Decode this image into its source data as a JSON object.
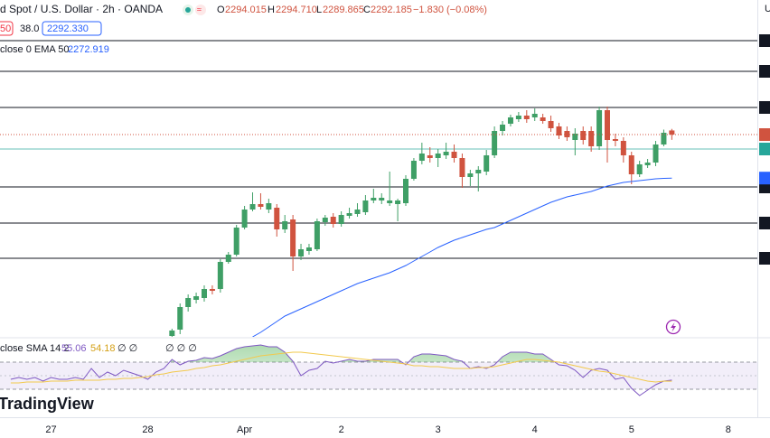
{
  "header": {
    "symbol": "d Spot / U.S. Dollar · 2h · OANDA",
    "ohlc": [
      {
        "k": "O",
        "v": "2294.015"
      },
      {
        "k": "H",
        "v": "2294.710"
      },
      {
        "k": "L",
        "v": "2289.865"
      },
      {
        "k": "C",
        "v": "2292.185"
      }
    ],
    "change": "−1.830 (−0.08%)",
    "spread": [
      "50",
      "38.0",
      "2292.330"
    ],
    "ema_legend": [
      "close 0 EMA 50",
      "2272.919"
    ],
    "rsi_legend": [
      "close SMA 14 2",
      "55.06",
      "54.18",
      "∅ ∅"
    ],
    "rsi_extra": "∅ ∅ ∅",
    "logo": "TradingView",
    "axis_corner": "U"
  },
  "chart_data": [
    {
      "type": "candlestick",
      "up_color": "#3f9f66",
      "down_color": "#d0533f",
      "ylim": [
        2202.6,
        2351.8
      ],
      "levels": [
        2333.8,
        2320.2,
        2304.2,
        2269.0,
        2253.0,
        2237.4
      ],
      "level_color": "#131722",
      "reference_line": {
        "value": 2285.8,
        "color": "#26a69a"
      },
      "ohlc": [
        null,
        null,
        null,
        null,
        null,
        null,
        null,
        null,
        null,
        null,
        null,
        null,
        null,
        null,
        null,
        null,
        null,
        null,
        null,
        null,
        null,
        [
          2203.0,
          2206.2,
          2202.2,
          2205.4
        ],
        [
          2205.8,
          2217.4,
          2203.8,
          2215.8
        ],
        [
          2215.8,
          2221.4,
          2213.8,
          2219.8
        ],
        [
          2219.0,
          2222.2,
          2217.4,
          2220.6
        ],
        [
          2219.8,
          2225.4,
          2218.2,
          2223.8
        ],
        [
          2223.8,
          2225.4,
          2221.4,
          2223.0
        ],
        [
          2223.8,
          2237.0,
          2222.2,
          2235.8
        ],
        [
          2235.8,
          2240.2,
          2235.0,
          2239.0
        ],
        [
          2239.0,
          2252.2,
          2238.2,
          2251.0
        ],
        [
          2251.0,
          2260.6,
          2250.2,
          2259.0
        ],
        [
          2259.0,
          2266.6,
          2258.2,
          2261.4
        ],
        [
          2261.4,
          2266.2,
          2259.0,
          2260.2
        ],
        [
          2259.0,
          2263.8,
          2257.4,
          2261.8
        ],
        [
          2259.8,
          2261.4,
          2247.0,
          2250.2
        ],
        [
          2250.2,
          2256.6,
          2248.6,
          2253.8
        ],
        [
          2254.6,
          2256.6,
          2231.8,
          2238.2
        ],
        [
          2238.2,
          2243.8,
          2236.6,
          2241.4
        ],
        [
          2240.6,
          2243.8,
          2239.0,
          2242.2
        ],
        [
          2241.4,
          2255.0,
          2240.6,
          2253.8
        ],
        [
          2253.4,
          2256.6,
          2251.8,
          2255.4
        ],
        [
          2255.8,
          2257.4,
          2251.0,
          2252.6
        ],
        [
          2252.6,
          2258.2,
          2251.4,
          2256.6
        ],
        [
          2256.2,
          2259.8,
          2255.0,
          2257.4
        ],
        [
          2257.0,
          2261.8,
          2255.8,
          2259.0
        ],
        [
          2257.8,
          2265.4,
          2256.6,
          2263.0
        ],
        [
          2263.0,
          2268.2,
          2261.8,
          2264.2
        ],
        [
          2263.0,
          2266.2,
          2261.4,
          2264.2
        ],
        [
          2261.8,
          2275.8,
          2260.6,
          2263.0
        ],
        [
          2261.4,
          2263.8,
          2253.8,
          2263.0
        ],
        [
          2261.8,
          2274.2,
          2260.6,
          2272.6
        ],
        [
          2272.6,
          2281.8,
          2271.8,
          2280.6
        ],
        [
          2280.6,
          2288.6,
          2279.0,
          2283.8
        ],
        [
          2283.0,
          2286.6,
          2279.8,
          2281.8
        ],
        [
          2281.8,
          2285.8,
          2277.8,
          2283.8
        ],
        [
          2283.0,
          2288.6,
          2281.4,
          2284.6
        ],
        [
          2284.6,
          2287.8,
          2279.8,
          2281.8
        ],
        [
          2281.8,
          2283.8,
          2268.6,
          2273.4
        ],
        [
          2273.4,
          2276.6,
          2269.4,
          2275.0
        ],
        [
          2275.0,
          2278.2,
          2267.0,
          2276.6
        ],
        [
          2275.8,
          2285.4,
          2274.2,
          2283.0
        ],
        [
          2283.0,
          2295.8,
          2281.8,
          2293.8
        ],
        [
          2293.8,
          2298.2,
          2291.8,
          2296.6
        ],
        [
          2297.0,
          2301.0,
          2295.8,
          2299.8
        ],
        [
          2299.0,
          2302.2,
          2297.8,
          2300.6
        ],
        [
          2300.6,
          2303.0,
          2297.4,
          2299.0
        ],
        [
          2299.8,
          2303.8,
          2298.2,
          2301.4
        ],
        [
          2299.8,
          2301.4,
          2297.0,
          2298.2
        ],
        [
          2298.2,
          2300.6,
          2293.4,
          2295.0
        ],
        [
          2295.8,
          2297.4,
          2290.2,
          2291.8
        ],
        [
          2293.8,
          2295.8,
          2289.4,
          2291.0
        ],
        [
          2289.8,
          2295.0,
          2283.0,
          2292.6
        ],
        [
          2293.8,
          2295.8,
          2287.8,
          2289.8
        ],
        [
          2293.8,
          2295.8,
          2284.6,
          2287.0
        ],
        [
          2287.0,
          2304.6,
          2285.4,
          2303.0
        ],
        [
          2303.0,
          2304.6,
          2279.8,
          2289.8
        ],
        [
          2290.2,
          2292.6,
          2287.0,
          2289.4
        ],
        [
          2289.4,
          2291.0,
          2279.8,
          2283.0
        ],
        [
          2283.0,
          2284.6,
          2270.2,
          2274.6
        ],
        [
          2274.6,
          2280.6,
          2273.4,
          2279.0
        ],
        [
          2278.6,
          2281.4,
          2277.4,
          2279.8
        ],
        [
          2279.8,
          2289.4,
          2278.2,
          2287.8
        ],
        [
          2287.8,
          2294.4,
          2287.0,
          2293.0
        ],
        [
          2294.015,
          2294.71,
          2289.865,
          2292.185
        ],
        null,
        null,
        null,
        null,
        null,
        null,
        null
      ],
      "overlay": {
        "color": "#2962ff",
        "values": [
          null,
          null,
          null,
          null,
          null,
          null,
          null,
          null,
          null,
          null,
          null,
          null,
          null,
          null,
          null,
          null,
          null,
          null,
          null,
          null,
          null,
          null,
          null,
          null,
          null,
          null,
          null,
          null,
          null,
          null,
          null,
          2202.6,
          2204.6,
          2207.0,
          2209.4,
          2211.8,
          2213.4,
          2215.0,
          2216.6,
          2218.2,
          2219.8,
          2221.4,
          2223.0,
          2224.6,
          2226.2,
          2227.4,
          2228.6,
          2229.8,
          2231.0,
          2232.6,
          2234.2,
          2236.2,
          2238.2,
          2240.2,
          2242.2,
          2243.8,
          2245.4,
          2246.6,
          2247.8,
          2249.0,
          2250.2,
          2251.0,
          2252.6,
          2254.2,
          2255.8,
          2257.4,
          2259.0,
          2260.6,
          2262.2,
          2263.4,
          2264.6,
          2265.4,
          2266.2,
          2267.0,
          2268.2,
          2269.4,
          2270.2,
          2271.0,
          2271.4,
          2271.8,
          2272.2,
          2272.6,
          2272.8,
          2272.919,
          null,
          null,
          null,
          null,
          null,
          null,
          null
        ]
      }
    },
    {
      "type": "line",
      "ylim": [
        24.25,
        89.5
      ],
      "fill_color": "#4caf50",
      "categories": [
        null,
        null,
        null,
        null,
        null,
        null,
        "27",
        null,
        null,
        null,
        null,
        null,
        null,
        null,
        null,
        null,
        null,
        null,
        "28",
        null,
        null,
        null,
        null,
        null,
        null,
        null,
        null,
        null,
        null,
        null,
        "Apr",
        null,
        null,
        null,
        null,
        null,
        null,
        null,
        null,
        null,
        null,
        null,
        "2",
        null,
        null,
        null,
        null,
        null,
        null,
        null,
        null,
        null,
        null,
        null,
        "3",
        null,
        null,
        null,
        null,
        null,
        null,
        null,
        null,
        null,
        null,
        null,
        "4",
        null,
        null,
        null,
        null,
        null,
        null,
        null,
        null,
        null,
        null,
        null,
        "5",
        null,
        null,
        null,
        null,
        null,
        null,
        null,
        null,
        null,
        null,
        null,
        "8"
      ],
      "series": [
        {
          "color": "#7e57c2",
          "values": [
            null,
            55.75,
            57.25,
            55.75,
            57.25,
            54.25,
            57.25,
            55.75,
            55.75,
            57.25,
            55.75,
            64.75,
            57.25,
            61.75,
            58.75,
            63.25,
            61,
            58.75,
            55.75,
            61.75,
            64.75,
            72.25,
            67.75,
            70.75,
            71.5,
            73.75,
            73,
            75.25,
            78.25,
            81.25,
            82.75,
            83.5,
            84.25,
            82.75,
            82.75,
            78.25,
            70.75,
            58.75,
            63.25,
            64.75,
            70.75,
            69.25,
            70.75,
            72.25,
            70.75,
            70.75,
            72.25,
            72.25,
            72.25,
            72.25,
            67.75,
            74.5,
            76.75,
            76.75,
            76,
            75.25,
            72.25,
            70.75,
            64.75,
            66.25,
            64.75,
            67.75,
            74.5,
            78.25,
            78.25,
            78.25,
            76.75,
            76.75,
            72.25,
            67.75,
            67,
            63.25,
            57.25,
            63.25,
            64.75,
            63.25,
            55.75,
            57.25,
            48.25,
            42.25,
            46.75,
            51.25,
            54.25,
            55.06,
            null,
            null,
            null,
            null,
            null,
            null,
            null
          ]
        },
        {
          "color": "#f2c94c",
          "values": [
            null,
            52.75,
            52.75,
            53.5,
            53.5,
            53.5,
            54.25,
            54.25,
            54.25,
            55,
            55,
            55,
            55,
            55.75,
            55.75,
            56.5,
            56.5,
            57.25,
            58,
            59.5,
            60.25,
            61.75,
            62.5,
            63.25,
            64.75,
            65.5,
            67,
            67.75,
            69.25,
            70.75,
            72.25,
            73.75,
            75.25,
            76,
            76.75,
            77.5,
            78.25,
            78.25,
            77.5,
            76.75,
            76,
            75.25,
            74.5,
            73.75,
            73,
            72.25,
            71.5,
            70.75,
            70,
            69.25,
            68.5,
            67,
            67,
            66.25,
            66.25,
            65.5,
            64.75,
            64.75,
            64.75,
            65.5,
            65.5,
            66.25,
            67.75,
            69.25,
            70.75,
            72.25,
            72.25,
            71.5,
            70.75,
            70,
            68.5,
            67,
            65.5,
            64,
            62.5,
            61.75,
            60.25,
            58.75,
            57.25,
            55.75,
            54.25,
            53.5,
            54.25,
            54.18,
            null,
            null,
            null,
            null,
            null,
            null,
            null
          ]
        }
      ]
    }
  ]
}
